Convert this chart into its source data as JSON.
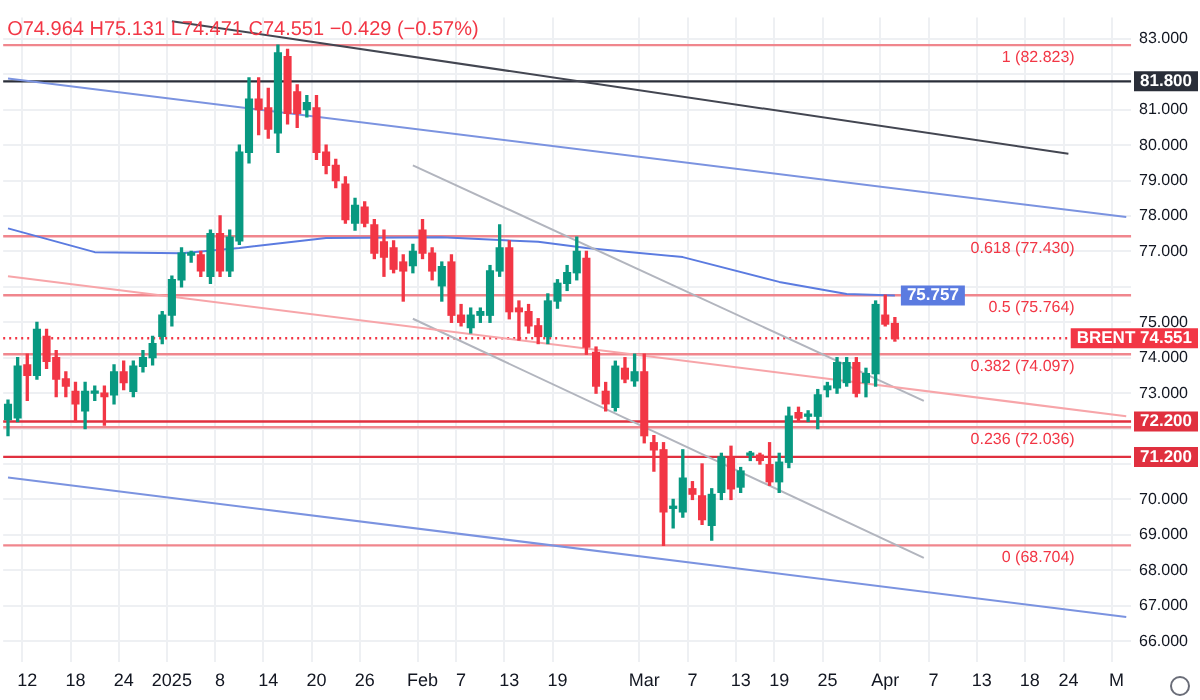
{
  "chart_data": {
    "type": "candlestick",
    "categories": [
      null,
      null,
      "12",
      null,
      null,
      null,
      null,
      "18",
      null,
      null,
      null,
      null,
      "24",
      null,
      null,
      null,
      null,
      "2025",
      null,
      null,
      null,
      null,
      "8",
      null,
      null,
      null,
      null,
      "14",
      null,
      null,
      null,
      null,
      "20",
      null,
      null,
      null,
      null,
      "26",
      null,
      null,
      null,
      null,
      null,
      "Feb",
      null,
      null,
      null,
      "7",
      null,
      null,
      null,
      null,
      "13",
      null,
      null,
      null,
      null,
      "19",
      null,
      null,
      null,
      null,
      null,
      null,
      null,
      null,
      "Mar",
      null,
      null,
      null,
      null,
      "7",
      null,
      null,
      null,
      null,
      "13",
      null,
      null,
      null,
      "19",
      null,
      null,
      null,
      null,
      "25",
      null,
      null,
      null,
      null,
      null,
      "Apr",
      null,
      null,
      null,
      null,
      "7",
      null,
      null,
      null,
      null,
      "13",
      null,
      null,
      null,
      null,
      "18",
      null,
      null,
      null,
      "24",
      null,
      null,
      null,
      null,
      "M",
      null
    ],
    "ohlc": [
      [
        72.25,
        72.8,
        71.8,
        72.68
      ],
      [
        72.3,
        74.0,
        72.2,
        73.76
      ],
      [
        73.8,
        74.1,
        72.8,
        73.5
      ],
      [
        73.5,
        75.0,
        73.4,
        74.8
      ],
      [
        74.6,
        74.8,
        73.7,
        73.9
      ],
      [
        74.0,
        74.2,
        72.9,
        73.4
      ],
      [
        73.4,
        73.6,
        72.9,
        73.2
      ],
      [
        73.05,
        73.3,
        72.2,
        72.7
      ],
      [
        72.5,
        73.3,
        72.0,
        73.05
      ],
      [
        73.0,
        73.2,
        72.8,
        73.02
      ],
      [
        73.0,
        73.2,
        72.1,
        72.9
      ],
      [
        72.95,
        73.8,
        72.7,
        73.6
      ],
      [
        73.6,
        73.9,
        73.1,
        73.3
      ],
      [
        73.05,
        73.9,
        72.9,
        73.76
      ],
      [
        73.76,
        74.2,
        73.6,
        74.0
      ],
      [
        74.0,
        74.6,
        73.8,
        74.4
      ],
      [
        74.6,
        75.3,
        74.4,
        75.2
      ],
      [
        75.2,
        76.3,
        74.9,
        76.2
      ],
      [
        76.2,
        77.1,
        76.0,
        76.95
      ],
      [
        76.9,
        77.0,
        76.7,
        76.92
      ],
      [
        76.9,
        77.0,
        76.3,
        76.45
      ],
      [
        76.3,
        77.6,
        76.1,
        77.5
      ],
      [
        77.5,
        78.0,
        76.3,
        76.45
      ],
      [
        76.45,
        77.6,
        76.3,
        77.4
      ],
      [
        77.3,
        80.0,
        77.2,
        79.8
      ],
      [
        79.8,
        81.9,
        79.5,
        81.3
      ],
      [
        81.3,
        81.9,
        80.3,
        81.0
      ],
      [
        81.05,
        81.6,
        80.2,
        80.45
      ],
      [
        80.35,
        82.823,
        79.8,
        82.6
      ],
      [
        82.5,
        82.7,
        80.6,
        80.9
      ],
      [
        81.5,
        81.7,
        80.5,
        80.9
      ],
      [
        81.0,
        81.4,
        80.8,
        81.2
      ],
      [
        81.05,
        81.4,
        79.6,
        79.8
      ],
      [
        79.8,
        80.0,
        79.2,
        79.43
      ],
      [
        79.43,
        79.6,
        78.8,
        79.0
      ],
      [
        78.9,
        79.1,
        77.8,
        77.9
      ],
      [
        77.8,
        78.5,
        77.6,
        78.3
      ],
      [
        78.25,
        78.4,
        77.7,
        77.8
      ],
      [
        77.75,
        77.9,
        76.8,
        76.95
      ],
      [
        77.27,
        77.6,
        76.3,
        76.84
      ],
      [
        77.1,
        77.3,
        76.4,
        76.5
      ],
      [
        76.7,
        76.9,
        75.6,
        76.45
      ],
      [
        76.6,
        77.2,
        76.4,
        77.0
      ],
      [
        77.6,
        77.9,
        76.8,
        76.95
      ],
      [
        76.95,
        77.1,
        76.2,
        76.45
      ],
      [
        76.03,
        76.7,
        75.6,
        76.57
      ],
      [
        76.7,
        76.9,
        75.0,
        75.2
      ],
      [
        75.2,
        75.5,
        74.9,
        75.0
      ],
      [
        74.85,
        75.4,
        74.7,
        75.2
      ],
      [
        75.2,
        75.4,
        75.0,
        75.3
      ],
      [
        75.2,
        76.6,
        75.0,
        76.45
      ],
      [
        76.45,
        77.75,
        76.3,
        77.1
      ],
      [
        77.1,
        77.3,
        75.1,
        75.3
      ],
      [
        75.4,
        75.6,
        74.5,
        75.3
      ],
      [
        75.3,
        75.5,
        74.7,
        74.9
      ],
      [
        74.9,
        75.1,
        74.4,
        74.6
      ],
      [
        74.6,
        75.8,
        74.4,
        75.6
      ],
      [
        75.6,
        76.2,
        75.4,
        76.1
      ],
      [
        76.1,
        76.6,
        75.9,
        76.4
      ],
      [
        76.4,
        77.4,
        76.2,
        77.0
      ],
      [
        76.8,
        77.0,
        74.1,
        74.3
      ],
      [
        74.15,
        74.3,
        73.0,
        73.2
      ],
      [
        73.05,
        73.3,
        72.5,
        72.7
      ],
      [
        72.6,
        73.9,
        72.5,
        73.76
      ],
      [
        73.7,
        74.0,
        73.3,
        73.4
      ],
      [
        73.35,
        74.1,
        73.2,
        73.6
      ],
      [
        73.6,
        74.1,
        71.6,
        71.8
      ],
      [
        71.6,
        71.8,
        70.8,
        71.4
      ],
      [
        71.4,
        71.6,
        68.704,
        69.65
      ],
      [
        69.75,
        70.0,
        69.2,
        69.76
      ],
      [
        69.65,
        71.4,
        69.5,
        70.6
      ],
      [
        70.3,
        70.5,
        70.0,
        70.15
      ],
      [
        70.1,
        71.0,
        69.3,
        69.43
      ],
      [
        69.27,
        70.3,
        68.85,
        70.14
      ],
      [
        70.2,
        71.3,
        70.0,
        71.2
      ],
      [
        71.16,
        71.5,
        70.0,
        70.3
      ],
      [
        70.35,
        70.9,
        70.2,
        70.8
      ],
      [
        71.25,
        71.35,
        71.1,
        71.27
      ],
      [
        71.25,
        71.3,
        71.0,
        71.1
      ],
      [
        70.98,
        71.6,
        70.4,
        70.5
      ],
      [
        70.5,
        71.3,
        70.2,
        71.05
      ],
      [
        71.05,
        72.6,
        70.9,
        72.35
      ],
      [
        72.45,
        72.6,
        72.2,
        72.3
      ],
      [
        72.35,
        72.5,
        72.2,
        72.37
      ],
      [
        72.35,
        73.1,
        72.0,
        72.95
      ],
      [
        73.1,
        73.3,
        72.9,
        73.2
      ],
      [
        73.15,
        74.0,
        73.0,
        73.86
      ],
      [
        73.3,
        74.0,
        73.2,
        73.86
      ],
      [
        73.86,
        74.0,
        72.9,
        73.0
      ],
      [
        73.3,
        73.7,
        72.9,
        73.55
      ],
      [
        73.55,
        75.6,
        73.2,
        75.5
      ],
      [
        75.2,
        75.764,
        74.9,
        74.95
      ],
      [
        74.964,
        75.131,
        74.471,
        74.551
      ],
      null,
      null,
      null,
      null,
      null,
      null,
      null,
      null,
      null,
      null,
      null,
      null,
      null,
      null,
      null,
      null,
      null,
      null,
      null,
      null,
      null,
      null,
      null,
      null
    ],
    "colors": [
      "#089981",
      "#089981",
      "#f23645",
      "#089981",
      "#f23645",
      "#f23645",
      "#f23645",
      "#f23645",
      "#089981",
      "#089981",
      "#f23645",
      "#089981",
      "#f23645",
      "#089981",
      "#089981",
      "#089981",
      "#089981",
      "#089981",
      "#089981",
      "#089981",
      "#f23645",
      "#089981",
      "#f23645",
      "#089981",
      "#089981",
      "#089981",
      "#f23645",
      "#f23645",
      "#089981",
      "#f23645",
      "#f23645",
      "#089981",
      "#f23645",
      "#f23645",
      "#f23645",
      "#f23645",
      "#089981",
      "#f23645",
      "#f23645",
      "#f23645",
      "#f23645",
      "#f23645",
      "#089981",
      "#f23645",
      "#f23645",
      "#089981",
      "#f23645",
      "#f23645",
      "#089981",
      "#089981",
      "#089981",
      "#089981",
      "#f23645",
      "#f23645",
      "#f23645",
      "#f23645",
      "#089981",
      "#089981",
      "#089981",
      "#089981",
      "#f23645",
      "#f23645",
      "#f23645",
      "#089981",
      "#f23645",
      "#089981",
      "#f23645",
      "#f23645",
      "#f23645",
      "#089981",
      "#089981",
      "#f23645",
      "#f23645",
      "#089981",
      "#089981",
      "#f23645",
      "#089981",
      "#089981",
      "#f23645",
      "#f23645",
      "#089981",
      "#089981",
      "#f23645",
      "#089981",
      "#089981",
      "#089981",
      "#089981",
      "#089981",
      "#f23645",
      "#089981",
      "#089981",
      "#f23645",
      "#f23645",
      null,
      null,
      null,
      null,
      null,
      null,
      null,
      null,
      null,
      null,
      null,
      null,
      null,
      null,
      null,
      null,
      null,
      null,
      null,
      null,
      null,
      null,
      null,
      null
    ],
    "series": [
      {
        "type": "line",
        "color": "#434651",
        "values": [
          null,
          null,
          null,
          null,
          null,
          null,
          null,
          null,
          null,
          null,
          null,
          null,
          null,
          null,
          null,
          null,
          null,
          83.5,
          null,
          null,
          null,
          null,
          null,
          null,
          null,
          null,
          null,
          null,
          null,
          null,
          null,
          null,
          null,
          null,
          null,
          null,
          null,
          null,
          null,
          null,
          null,
          null,
          null,
          null,
          null,
          null,
          null,
          null,
          null,
          null,
          null,
          null,
          null,
          null,
          null,
          null,
          null,
          null,
          null,
          null,
          null,
          null,
          null,
          null,
          null,
          null,
          null,
          null,
          null,
          null,
          null,
          null,
          null,
          null,
          null,
          null,
          null,
          null,
          null,
          null,
          null,
          null,
          null,
          null,
          null,
          null,
          null,
          null,
          null,
          null,
          null,
          null,
          null,
          null,
          null,
          null,
          null,
          null,
          null,
          null,
          null,
          null,
          null,
          null,
          null,
          null,
          null,
          null,
          null,
          null,
          79.76,
          null,
          null,
          null,
          null,
          null,
          null
        ]
      },
      {
        "type": "line",
        "color": "#7b93e0",
        "values": [
          81.88,
          null,
          null,
          null,
          null,
          null,
          null,
          null,
          null,
          null,
          null,
          null,
          null,
          null,
          null,
          null,
          null,
          null,
          null,
          null,
          null,
          null,
          null,
          null,
          null,
          null,
          null,
          null,
          null,
          null,
          null,
          null,
          null,
          null,
          null,
          null,
          null,
          null,
          null,
          null,
          null,
          null,
          null,
          null,
          null,
          null,
          null,
          null,
          null,
          null,
          null,
          null,
          null,
          null,
          null,
          null,
          null,
          null,
          null,
          null,
          null,
          null,
          null,
          null,
          null,
          null,
          null,
          null,
          null,
          null,
          null,
          null,
          null,
          null,
          null,
          null,
          null,
          null,
          null,
          null,
          null,
          null,
          null,
          null,
          null,
          null,
          null,
          null,
          null,
          null,
          null,
          null,
          null,
          null,
          null,
          null,
          null,
          null,
          null,
          null,
          null,
          null,
          null,
          null,
          null,
          null,
          null,
          null,
          null,
          null,
          null,
          null,
          null,
          null,
          null,
          null,
          77.97
        ]
      },
      {
        "type": "line",
        "color": "#f7a5a9",
        "values": [
          76.3,
          null,
          null,
          null,
          null,
          null,
          null,
          null,
          null,
          null,
          null,
          null,
          null,
          null,
          null,
          null,
          null,
          null,
          null,
          null,
          null,
          null,
          null,
          null,
          null,
          null,
          null,
          null,
          null,
          null,
          null,
          null,
          null,
          null,
          null,
          null,
          null,
          null,
          null,
          null,
          null,
          null,
          null,
          null,
          null,
          null,
          null,
          null,
          null,
          null,
          null,
          null,
          null,
          null,
          null,
          null,
          null,
          null,
          null,
          null,
          null,
          null,
          null,
          null,
          null,
          null,
          null,
          null,
          null,
          null,
          null,
          null,
          null,
          null,
          null,
          null,
          null,
          null,
          null,
          null,
          null,
          null,
          null,
          null,
          null,
          null,
          null,
          null,
          null,
          null,
          null,
          null,
          null,
          null,
          null,
          null,
          null,
          null,
          null,
          null,
          null,
          null,
          null,
          null,
          null,
          null,
          null,
          null,
          null,
          null,
          null,
          null,
          null,
          null,
          null,
          null,
          72.35
        ]
      },
      {
        "type": "line",
        "color": "#7b93e0",
        "values": [
          70.62,
          null,
          null,
          null,
          null,
          null,
          null,
          null,
          null,
          null,
          null,
          null,
          null,
          null,
          null,
          null,
          null,
          null,
          null,
          null,
          null,
          null,
          null,
          null,
          null,
          null,
          null,
          null,
          null,
          null,
          null,
          null,
          null,
          null,
          null,
          null,
          null,
          null,
          null,
          null,
          null,
          null,
          null,
          null,
          null,
          null,
          null,
          null,
          null,
          null,
          null,
          null,
          null,
          null,
          null,
          null,
          null,
          null,
          null,
          null,
          null,
          null,
          null,
          null,
          null,
          null,
          null,
          null,
          null,
          null,
          null,
          null,
          null,
          null,
          null,
          null,
          null,
          null,
          null,
          null,
          null,
          null,
          null,
          null,
          null,
          null,
          null,
          null,
          null,
          null,
          null,
          null,
          null,
          null,
          null,
          null,
          null,
          null,
          null,
          null,
          null,
          null,
          null,
          null,
          null,
          null,
          null,
          null,
          null,
          null,
          null,
          null,
          null,
          null,
          null,
          null,
          66.68
        ]
      },
      {
        "type": "line",
        "color": "#b2b5be",
        "values": [
          null,
          null,
          null,
          null,
          null,
          null,
          null,
          null,
          null,
          null,
          null,
          null,
          null,
          null,
          null,
          null,
          null,
          null,
          null,
          null,
          null,
          null,
          null,
          null,
          null,
          null,
          null,
          null,
          null,
          null,
          null,
          null,
          null,
          null,
          null,
          null,
          null,
          null,
          null,
          null,
          null,
          null,
          79.43,
          null,
          null,
          null,
          null,
          null,
          null,
          null,
          null,
          null,
          null,
          null,
          null,
          null,
          null,
          null,
          null,
          null,
          null,
          null,
          null,
          null,
          null,
          null,
          null,
          null,
          null,
          null,
          null,
          null,
          null,
          null,
          null,
          null,
          null,
          null,
          null,
          null,
          null,
          null,
          null,
          null,
          null,
          null,
          null,
          null,
          null,
          null,
          null,
          null,
          null,
          null,
          null,
          72.78,
          null,
          null,
          null,
          null,
          null,
          null,
          null,
          null,
          null,
          null,
          null,
          null,
          null,
          null,
          null,
          null,
          null,
          null,
          null,
          null,
          null
        ]
      },
      {
        "type": "line",
        "color": "#b2b5be",
        "values": [
          null,
          null,
          null,
          null,
          null,
          null,
          null,
          null,
          null,
          null,
          null,
          null,
          null,
          null,
          null,
          null,
          null,
          null,
          null,
          null,
          null,
          null,
          null,
          null,
          null,
          null,
          null,
          null,
          null,
          null,
          null,
          null,
          null,
          null,
          null,
          null,
          null,
          null,
          null,
          null,
          null,
          null,
          75.1,
          null,
          null,
          null,
          null,
          null,
          null,
          null,
          null,
          null,
          null,
          null,
          null,
          null,
          null,
          null,
          null,
          null,
          null,
          null,
          null,
          null,
          null,
          null,
          null,
          null,
          null,
          null,
          null,
          null,
          null,
          null,
          null,
          null,
          null,
          null,
          null,
          null,
          null,
          null,
          null,
          null,
          null,
          null,
          null,
          null,
          null,
          null,
          null,
          null,
          null,
          null,
          null,
          68.35,
          null,
          null,
          null,
          null,
          null,
          null,
          null,
          null,
          null,
          null,
          null,
          null,
          null,
          null,
          null,
          null,
          null,
          null,
          null,
          null,
          null
        ]
      },
      {
        "type": "line",
        "color": "#5b7be0",
        "values": [
          77.65,
          null,
          null,
          null,
          null,
          null,
          null,
          null,
          null,
          76.98,
          null,
          null,
          null,
          null,
          null,
          null,
          null,
          null,
          76.95,
          null,
          null,
          null,
          null,
          null,
          77.1,
          null,
          null,
          null,
          null,
          null,
          null,
          null,
          null,
          77.38,
          null,
          null,
          null,
          null,
          null,
          null,
          null,
          null,
          null,
          null,
          null,
          77.4,
          null,
          null,
          null,
          null,
          null,
          null,
          null,
          null,
          null,
          77.27,
          null,
          null,
          null,
          null,
          77.1,
          null,
          null,
          null,
          null,
          null,
          null,
          null,
          null,
          null,
          76.84,
          null,
          null,
          null,
          null,
          null,
          null,
          null,
          null,
          null,
          76.14,
          null,
          null,
          null,
          null,
          null,
          null,
          75.8,
          null,
          null,
          null,
          null,
          75.757,
          null,
          null,
          null,
          null,
          null,
          null,
          null,
          null,
          null,
          null,
          null,
          null,
          null,
          null,
          null,
          null,
          null,
          null,
          null,
          null,
          null,
          null,
          null,
          null
        ],
        "value_labels": [
          null,
          null,
          null,
          null,
          null,
          null,
          null,
          null,
          null,
          null,
          null,
          null,
          null,
          null,
          null,
          null,
          null,
          null,
          null,
          null,
          null,
          null,
          null,
          null,
          null,
          null,
          null,
          null,
          null,
          null,
          null,
          null,
          null,
          null,
          null,
          null,
          null,
          null,
          null,
          null,
          null,
          null,
          null,
          null,
          null,
          null,
          null,
          null,
          null,
          null,
          null,
          null,
          null,
          null,
          null,
          null,
          null,
          null,
          null,
          null,
          null,
          null,
          null,
          null,
          null,
          null,
          null,
          null,
          null,
          null,
          null,
          null,
          null,
          null,
          null,
          null,
          null,
          null,
          null,
          null,
          null,
          null,
          null,
          null,
          null,
          null,
          null,
          null,
          null,
          null,
          null,
          null,
          "75.757",
          null,
          null,
          null,
          null,
          null,
          null,
          null,
          null,
          null,
          null,
          null,
          null,
          null,
          null,
          null,
          null,
          null,
          null,
          null,
          null,
          null,
          null,
          null,
          null
        ]
      }
    ],
    "ylim": [
      65.4,
      83.6
    ],
    "yticks": [
      {
        "value": 66,
        "label": "66.000"
      },
      {
        "value": 67,
        "label": "67.000"
      },
      {
        "value": 68,
        "label": "68.000"
      },
      {
        "value": 69,
        "label": "69.000"
      },
      {
        "value": 70,
        "label": "70.000"
      },
      {
        "value": 71,
        "label": null
      },
      {
        "value": 72,
        "label": null
      },
      {
        "value": 73,
        "label": "73.000"
      },
      {
        "value": 74,
        "label": "74.000"
      },
      {
        "value": 75,
        "label": "75.000"
      },
      {
        "value": 76,
        "label": null
      },
      {
        "value": 77,
        "label": "77.000"
      },
      {
        "value": 78,
        "label": "78.000"
      },
      {
        "value": 79,
        "label": "79.000"
      },
      {
        "value": 80,
        "label": "80.000"
      },
      {
        "value": 81,
        "label": "81.000"
      },
      {
        "value": 82,
        "label": null
      },
      {
        "value": 83,
        "label": "83.000"
      }
    ],
    "ref_lines": [
      {
        "axis": "y",
        "value": 82.823,
        "color": "#f0868d"
      },
      {
        "axis": "y",
        "value": 77.43,
        "color": "#f0868d"
      },
      {
        "axis": "y",
        "value": 75.764,
        "color": "#f0868d"
      },
      {
        "axis": "y",
        "value": 74.097,
        "color": "#f0868d"
      },
      {
        "axis": "y",
        "value": 72.036,
        "color": "#f0868d"
      },
      {
        "axis": "y",
        "value": 68.704,
        "color": "#f0868d"
      },
      {
        "axis": "y",
        "value": 81.8,
        "label": "81.800",
        "color": "#2a2e39"
      },
      {
        "axis": "y",
        "value": 72.2,
        "label": "72.200",
        "color": "#e0303f"
      },
      {
        "axis": "y",
        "value": 71.2,
        "label": "71.200",
        "color": "#e0303f"
      },
      {
        "axis": "y",
        "value": 74.551,
        "label": "BRENT 74.551",
        "color": "#f23645",
        "line_style": "dotted"
      }
    ],
    "annotations": [
      "O74.964 H75.131 L74.471 C74.551 −0.429 (−0.57%)",
      {
        "text": "1 (82.823)",
        "y": 82.823
      },
      {
        "text": "0.618 (77.430)",
        "y": 77.43
      },
      {
        "text": "0.5 (75.764)",
        "y": 75.764
      },
      {
        "text": "0.382 (74.097)",
        "y": 74.097
      },
      {
        "text": "0.236 (72.036)",
        "y": 72.036
      },
      {
        "text": "0 (68.704)",
        "y": 68.704
      }
    ],
    "grid": true
  }
}
